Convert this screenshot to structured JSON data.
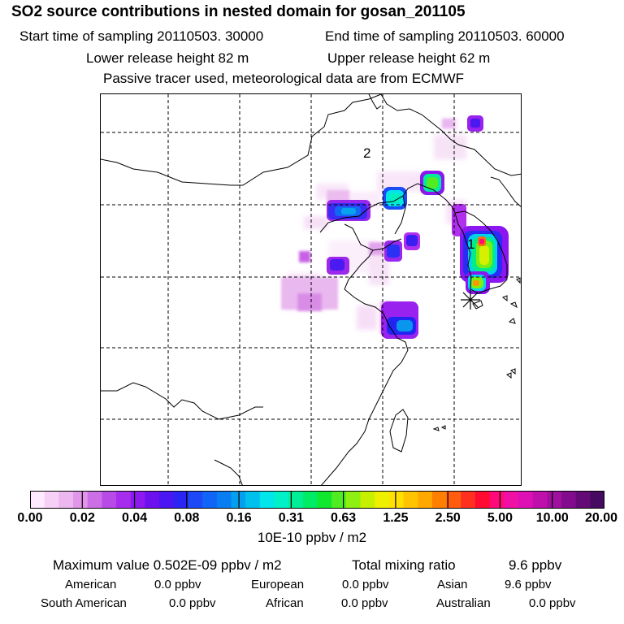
{
  "header": {
    "title": "SO2 source contributions in nested domain for gosan_201105",
    "start_time": "Start time of sampling 20110503. 30000",
    "end_time": "End time of sampling 20110503. 60000",
    "lower_height": "Lower release height   82 m",
    "upper_height": "Upper release height   62 m",
    "tracer_note": "Passive tracer used, meteorological data are from ECMWF"
  },
  "map": {
    "label_1": "1",
    "label_2": "2",
    "receptor_marker": "receptor-asterisk"
  },
  "colorbar": {
    "colors": [
      "#ffeaff",
      "#f7d0f7",
      "#ecb6ee",
      "#e296ea",
      "#cc6ee6",
      "#b84ae8",
      "#a62cee",
      "#8e18f0",
      "#6c10ee",
      "#4a16f2",
      "#2a24f4",
      "#1c48f6",
      "#1064f6",
      "#087ef2",
      "#04a0ef",
      "#00c0ee",
      "#00e6ea",
      "#00f0c8",
      "#00ee96",
      "#00ec64",
      "#10e830",
      "#4eec20",
      "#8ef010",
      "#c6f000",
      "#eef000",
      "#ffe000",
      "#ffc400",
      "#ffa800",
      "#ff8000",
      "#ff5c10",
      "#ff3020",
      "#ff0a30",
      "#ff0a78",
      "#f010a6",
      "#dc10b4",
      "#c010ac",
      "#a0109e",
      "#820c8c",
      "#640a76",
      "#460a60"
    ],
    "tick_labels": [
      "0.00",
      "0.02",
      "0.04",
      "0.08",
      "0.16",
      "0.31",
      "0.63",
      "1.25",
      "2.50",
      "5.00",
      "10.00",
      "20.00"
    ],
    "units": "10E-10 ppbv / m2"
  },
  "summary": {
    "maximum": "Maximum value  0.502E-09 ppbv / m2",
    "total_label": "Total mixing ratio",
    "total_value": "9.6 ppbv",
    "american_label": "American",
    "american_value": "0.0 ppbv",
    "european_label": "European",
    "european_value": "0.0 ppbv",
    "asian_label": "Asian",
    "asian_value": "9.6 ppbv",
    "south_american_label": "South American",
    "south_american_value": "0.0 ppbv",
    "african_label": "African",
    "african_value": "0.0 ppbv",
    "australian_label": "Australian",
    "australian_value": "0.0 ppbv"
  }
}
